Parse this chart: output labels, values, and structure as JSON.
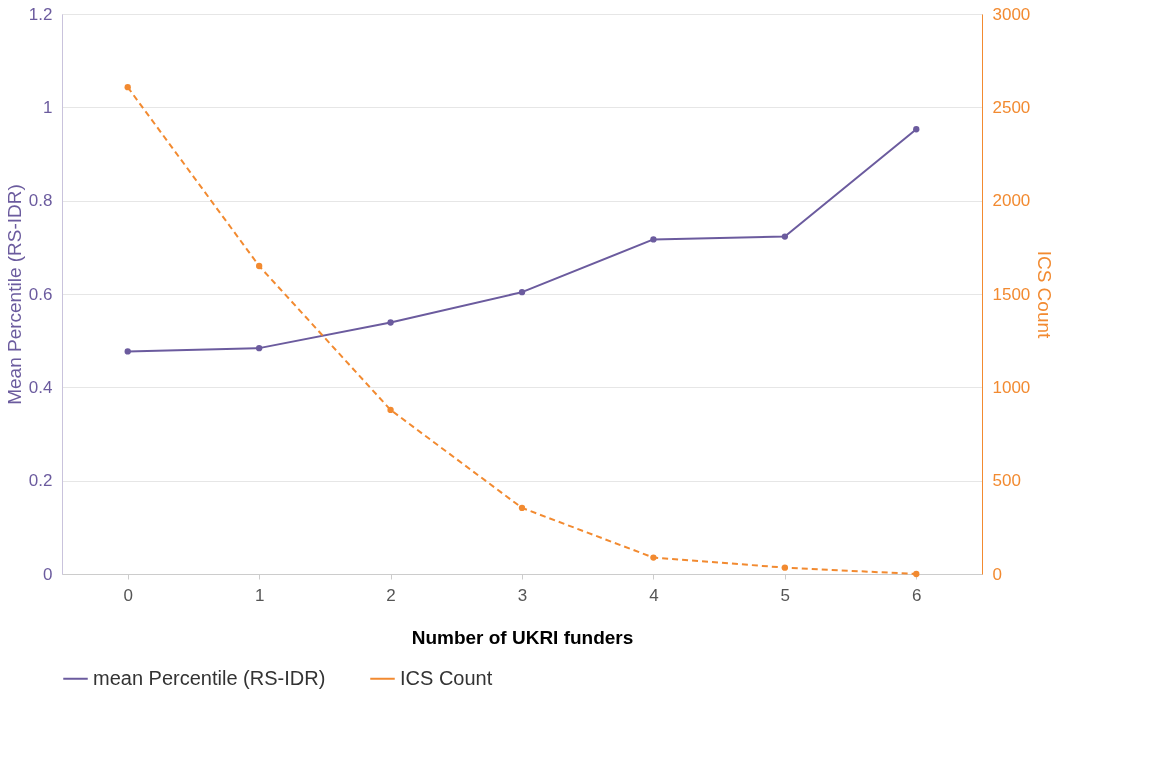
{
  "chart_data": {
    "type": "line",
    "xlabel": "Number of UKRI funders",
    "ylabel": "Mean Percentile (RS-IDR)",
    "y2label": "ICS Count",
    "categories": [
      "0",
      "1",
      "2",
      "3",
      "4",
      "5",
      "6"
    ],
    "series": [
      {
        "name": "mean Percentile (RS-IDR)",
        "color": "#6b5b9e",
        "line_style": "solid",
        "values": [
          0.477,
          0.484,
          0.539,
          0.604,
          0.717,
          0.723,
          0.953
        ]
      },
      {
        "name": "ICS Count",
        "color": "#f28a30",
        "line_style": "dashed",
        "axis": "y2",
        "values": [
          2608,
          1650,
          879,
          354,
          88,
          34,
          0
        ]
      }
    ],
    "ylim": [
      0,
      1.2
    ],
    "yticks": [
      0,
      0.2,
      0.4,
      0.6,
      0.8,
      1,
      1.2
    ],
    "y2lim": [
      0,
      3000
    ],
    "y2ticks": [
      0,
      500,
      1000,
      1500,
      2000,
      2500,
      3000
    ],
    "grid": "y",
    "legend": "bottom",
    "marker": "circle"
  }
}
